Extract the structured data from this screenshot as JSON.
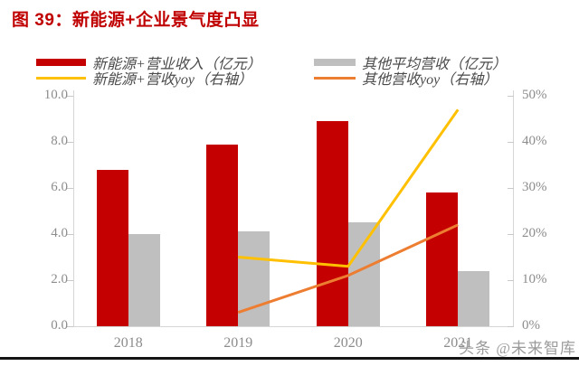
{
  "header": {
    "title": "图 39：新能源+企业景气度凸显"
  },
  "watermark": "头条 @未来智库",
  "colors": {
    "title_red": "#C00000",
    "bar_red": "#C40000",
    "bar_gray": "#BFBFBF",
    "line_yellow": "#FFC000",
    "line_orange": "#ED7D31",
    "axis_text": "#8C8C8C",
    "watermark_gray": "#9B9B9B"
  },
  "chart_data": {
    "type": "bar",
    "subtype": "bar-line-combo",
    "categories": [
      "2018",
      "2019",
      "2020",
      "2021"
    ],
    "series": [
      {
        "name": "新能源+营业收入（亿元）",
        "type": "bar",
        "axis": "left",
        "color": "#C40000",
        "values": [
          6.8,
          7.9,
          8.9,
          5.8
        ]
      },
      {
        "name": "其他平均营收（亿元）",
        "type": "bar",
        "axis": "left",
        "color": "#BFBFBF",
        "values": [
          4.0,
          4.1,
          4.5,
          2.4
        ]
      },
      {
        "name": "新能源+营收yoy（右轴）",
        "type": "line",
        "axis": "right",
        "color": "#FFC000",
        "values": [
          null,
          15,
          13,
          47
        ]
      },
      {
        "name": "其他营收yoy（右轴）",
        "type": "line",
        "axis": "right",
        "color": "#ED7D31",
        "values": [
          null,
          3,
          11,
          22
        ]
      }
    ],
    "left_axis": {
      "ticks": [
        "10.0",
        "8.0",
        "6.0",
        "4.0",
        "2.0",
        "0.0"
      ],
      "min": 0,
      "max": 10
    },
    "right_axis": {
      "ticks": [
        "50%",
        "40%",
        "30%",
        "20%",
        "10%",
        "0%"
      ],
      "min": 0,
      "max": 50,
      "unit": "%"
    },
    "grid": false,
    "legend_position": "top"
  }
}
